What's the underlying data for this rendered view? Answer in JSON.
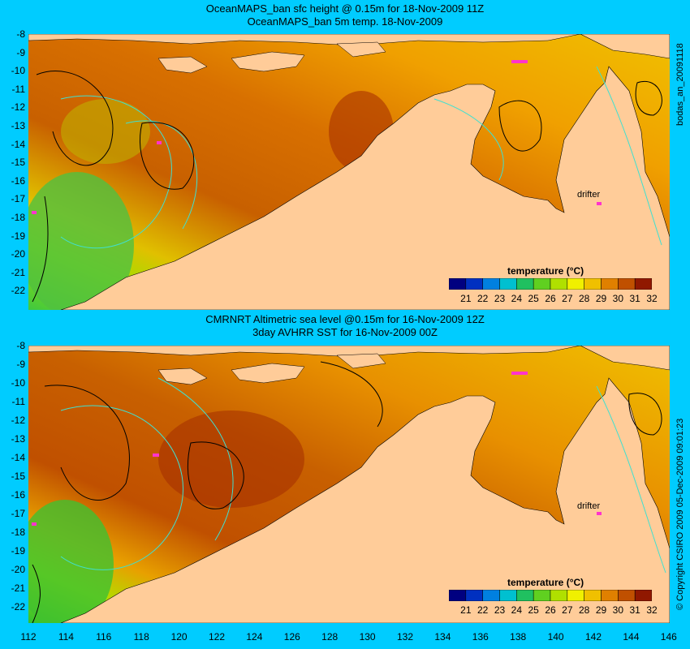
{
  "top": {
    "title_line1": "OceanMAPS_ban sfc height @ 0.15m for 18-Nov-2009 11Z",
    "title_line2": "OceanMAPS_ban 5m temp. 18-Nov-2009",
    "side_label": "bodas_an_20091118",
    "drifter_label": "drifter",
    "colorbar_title": "temperature (°C)"
  },
  "bottom": {
    "title_line1": "CMRNRT Altimetric sea level  @0.15m  for 16-Nov-2009 12Z",
    "title_line2": "3day AVHRR SST for 16-Nov-2009 00Z",
    "side_label": "© Copyright CSIRO 2009  05-Dec-2009 09:01:23",
    "drifter_label": "drifter",
    "colorbar_title": "temperature (°C)"
  },
  "axes": {
    "y_ticks": [
      "-8",
      "-9",
      "-10",
      "-11",
      "-12",
      "-13",
      "-14",
      "-15",
      "-16",
      "-17",
      "-18",
      "-19",
      "-20",
      "-21",
      "-22"
    ],
    "x_ticks": [
      "112",
      "114",
      "116",
      "118",
      "120",
      "122",
      "124",
      "126",
      "128",
      "130",
      "132",
      "134",
      "136",
      "138",
      "140",
      "142",
      "144",
      "146"
    ]
  },
  "colorbar": {
    "ticks": [
      "21",
      "22",
      "23",
      "24",
      "25",
      "26",
      "27",
      "28",
      "29",
      "30",
      "31",
      "32"
    ],
    "colors": [
      "#000080",
      "#0030c0",
      "#0080e0",
      "#00c0d0",
      "#20c060",
      "#60d020",
      "#b0e000",
      "#f0f000",
      "#f0c000",
      "#e08000",
      "#c05000",
      "#901800"
    ]
  },
  "colors": {
    "land": "#ffcc99",
    "background": "#00ccff",
    "contour_sla": "#40e0d0",
    "contour_sfc": "#000000",
    "drifter_marker": "#ff33cc"
  }
}
